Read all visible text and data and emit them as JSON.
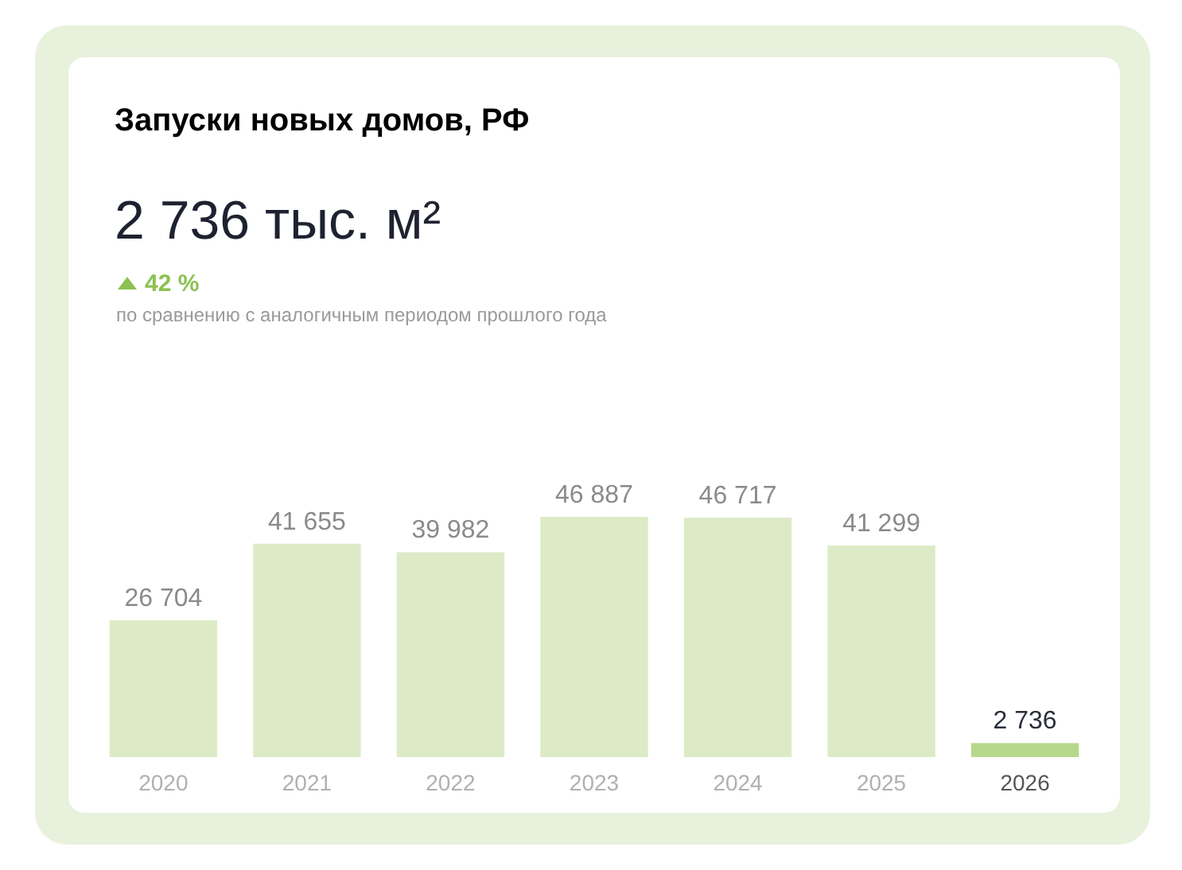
{
  "chart_data": {
    "type": "bar",
    "title": "Запуски новых домов, РФ",
    "subtitle": "2 736 тыс. м²",
    "annotations": [
      "42 %",
      "по сравнению с аналогичным периодом прошлого года"
    ],
    "categories": [
      "2020",
      "2021",
      "2022",
      "2023",
      "2024",
      "2025",
      "2026"
    ],
    "values": [
      26704,
      41655,
      39982,
      46887,
      46717,
      41299,
      2736
    ],
    "colors": [
      "#dcebc6",
      "#dcebc6",
      "#dcebc6",
      "#dcebc6",
      "#dcebc6",
      "#dcebc6",
      "#b5d88a"
    ],
    "value_labels": [
      "26 704",
      "41 655",
      "39 982",
      "46 887",
      "46 717",
      "41 299",
      "2 736"
    ]
  }
}
